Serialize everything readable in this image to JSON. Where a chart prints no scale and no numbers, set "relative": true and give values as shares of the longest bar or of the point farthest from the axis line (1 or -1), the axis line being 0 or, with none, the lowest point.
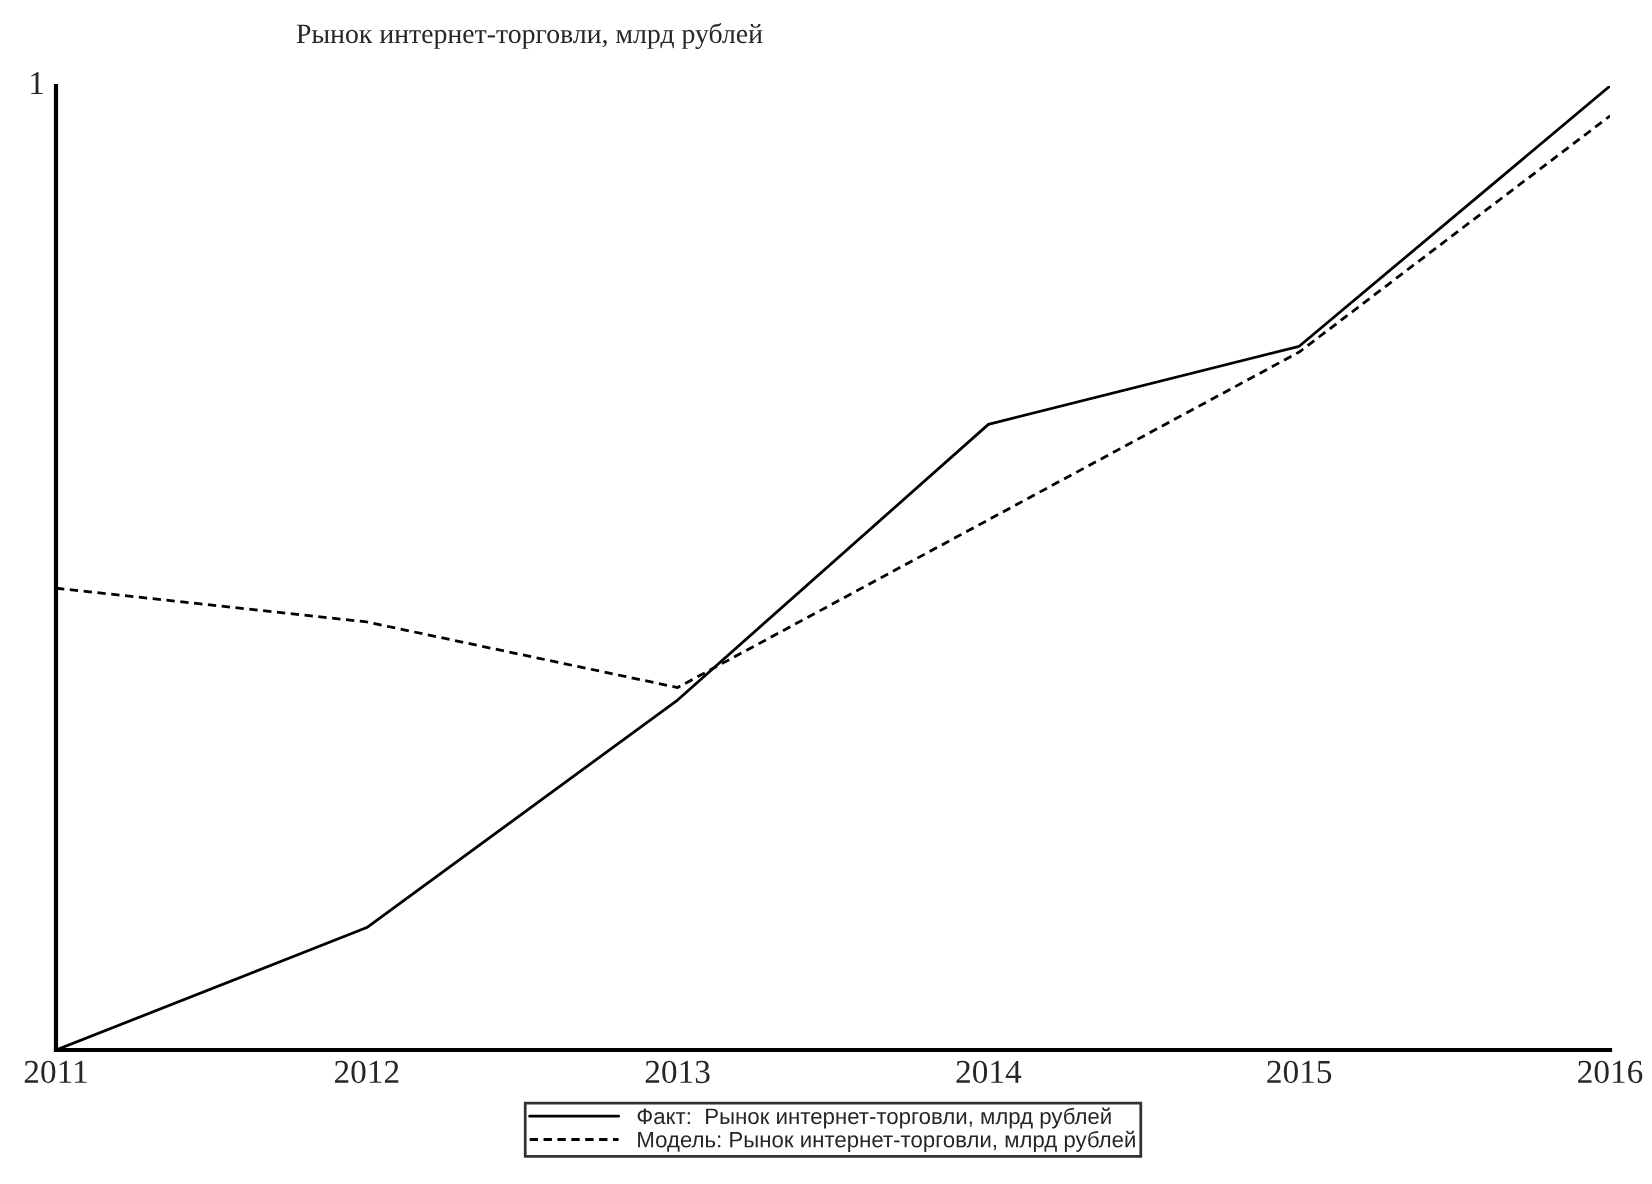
{
  "chart_data": {
    "type": "line",
    "title": "Рынок интернет-торговли, млрд рублей",
    "relative": true,
    "categories": [
      "2011",
      "2012",
      "2013",
      "2014",
      "2015",
      "2016"
    ],
    "series": [
      {
        "name": "Факт:  Рынок интернет-торговли, млрд рублей",
        "color": "#000000",
        "line_style": "solid",
        "values": [
          0,
          0.127,
          0.363,
          0.649,
          0.73,
          1.0
        ]
      },
      {
        "name": "Модель: Рынок интернет-торговли, млрд рублей",
        "color": "#000000",
        "line_style": "dashed",
        "values": [
          0.479,
          0.444,
          0.376,
          0.55,
          0.724,
          0.969
        ]
      }
    ],
    "annotations": [
      "1"
    ],
    "legend": "bottom",
    "grid": false
  }
}
